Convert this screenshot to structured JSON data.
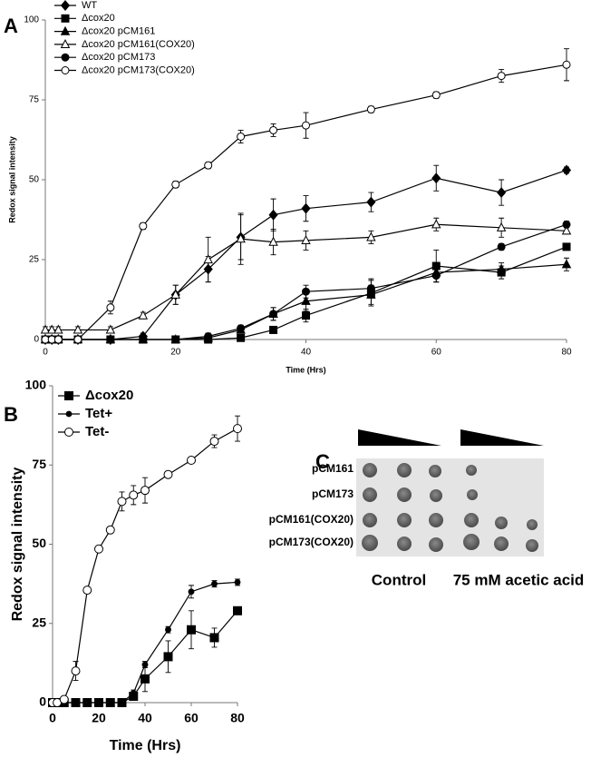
{
  "chart_data": [
    {
      "type": "line",
      "label": "A",
      "x_label": "Time (Hrs)",
      "y_label": "Redox signal intensity",
      "x": [
        0,
        1,
        2,
        5,
        10,
        15,
        20,
        25,
        30,
        35,
        40,
        50,
        60,
        70,
        80
      ],
      "xlim": [
        0,
        80
      ],
      "xticks": [
        0,
        20,
        40,
        60,
        80
      ],
      "ylim": [
        0,
        100
      ],
      "yticks": [
        0,
        25,
        50,
        75,
        100
      ],
      "grid": false,
      "legend": "top-left",
      "series": [
        {
          "name": "WT",
          "color": "#000000",
          "marker": "diamond",
          "filled": true,
          "values": [
            0,
            0,
            0,
            0,
            0,
            1,
            14,
            22,
            32,
            39,
            41,
            43,
            50.5,
            46,
            53
          ],
          "errors": [
            0,
            0,
            0,
            0,
            0,
            1,
            3,
            4,
            7,
            5,
            4,
            3,
            4,
            4,
            1
          ]
        },
        {
          "name": "Δcox20",
          "color": "#000000",
          "marker": "square",
          "filled": true,
          "values": [
            0,
            0,
            0,
            0,
            0,
            0,
            0,
            0,
            0.5,
            3,
            7.5,
            14.5,
            23,
            21,
            29
          ],
          "errors": [
            0,
            0,
            0,
            0,
            0,
            0,
            0,
            0,
            1,
            1,
            2,
            4,
            5,
            2,
            0
          ]
        },
        {
          "name": "Δcox20 pCM161",
          "color": "#000000",
          "marker": "triangle",
          "filled": true,
          "values": [
            0,
            0,
            0,
            0,
            0,
            0,
            0,
            0.5,
            3,
            8,
            12,
            14,
            21,
            22,
            23.5
          ],
          "errors": [
            0,
            0,
            0,
            0,
            0,
            0,
            0,
            1,
            1,
            2,
            3,
            3,
            3,
            2,
            2
          ]
        },
        {
          "name": "Δcox20 pCM161(COX20)",
          "color": "#000000",
          "marker": "triangle",
          "filled": false,
          "values": [
            3,
            3,
            3,
            3,
            3,
            7.5,
            14,
            25,
            31.5,
            30.5,
            31,
            32,
            36,
            35,
            34
          ],
          "errors": [
            1,
            1,
            1,
            1,
            1,
            1,
            3,
            7,
            8,
            4,
            3,
            2,
            2,
            3,
            1
          ]
        },
        {
          "name": "Δcox20 pCM173",
          "color": "#000000",
          "marker": "circle",
          "filled": true,
          "values": [
            0,
            0,
            0,
            0,
            0,
            0,
            0,
            1,
            3.5,
            8,
            15,
            16,
            20,
            29,
            36
          ],
          "errors": [
            0,
            0,
            0,
            0,
            0,
            0,
            0,
            1,
            1,
            2,
            2,
            3,
            2,
            1,
            1
          ]
        },
        {
          "name": "Δcox20 pCM173(COX20)",
          "color": "#000000",
          "marker": "circle",
          "filled": false,
          "values": [
            0,
            0,
            0,
            0,
            10,
            35.5,
            48.5,
            54.5,
            63.5,
            65.5,
            67,
            72,
            76.5,
            82.5,
            86
          ],
          "errors": [
            0,
            0,
            0,
            0,
            2,
            1,
            1,
            1,
            2,
            2,
            4,
            1,
            1,
            2,
            5
          ]
        }
      ]
    },
    {
      "type": "line",
      "label": "B",
      "x_label": "Time (Hrs)",
      "y_label": "Redox signal intensity",
      "x": [
        0,
        2,
        5,
        10,
        15,
        20,
        25,
        30,
        35,
        40,
        50,
        60,
        70,
        80
      ],
      "xlim": [
        0,
        80
      ],
      "xticks": [
        0,
        20,
        40,
        60,
        80
      ],
      "ylim": [
        0,
        100
      ],
      "yticks": [
        0,
        25,
        50,
        75,
        100
      ],
      "grid": false,
      "legend": "top-left",
      "series": [
        {
          "name": "Δcox20",
          "color": "#000000",
          "marker": "square",
          "filled": true,
          "values": [
            0,
            0,
            0,
            0,
            0,
            0,
            0,
            0,
            2,
            7.5,
            14.5,
            23,
            20.5,
            29
          ],
          "errors": [
            0,
            0,
            0,
            0,
            0,
            0,
            0,
            0,
            1,
            4,
            5,
            6,
            3,
            1
          ]
        },
        {
          "name": "Tet+",
          "color": "#000000",
          "marker": "dot",
          "filled": true,
          "values": [
            0,
            0,
            0,
            0,
            0,
            0,
            0,
            0,
            3,
            12,
            23,
            35,
            37.5,
            38
          ],
          "errors": [
            0,
            0,
            0,
            0,
            0,
            0,
            0,
            0,
            1,
            1,
            1,
            2,
            1,
            1
          ]
        },
        {
          "name": "Tet-",
          "color": "#000000",
          "marker": "circle",
          "filled": false,
          "values": [
            0,
            0,
            1,
            10,
            35.5,
            48.5,
            54.5,
            63.5,
            65.5,
            67,
            72,
            76.5,
            82.5,
            86.5
          ],
          "errors": [
            0,
            0,
            1,
            3,
            1,
            1,
            1,
            3,
            3,
            4,
            1,
            1,
            2,
            4
          ]
        }
      ]
    }
  ],
  "panel_c": {
    "label": "C",
    "strains": [
      "pCM161",
      "pCM173",
      "pCM161(COX20)",
      "pCM173(COX20)"
    ],
    "conditions": [
      "Control",
      "75 mM acetic acid"
    ]
  }
}
